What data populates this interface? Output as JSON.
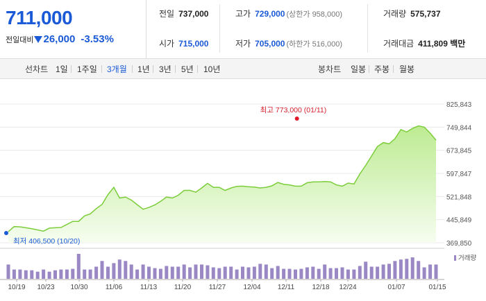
{
  "price": {
    "current": "711,000",
    "change_label": "전일대비",
    "change_amount": "26,000",
    "change_pct": "-3.53%"
  },
  "stats": {
    "prev_label": "전일",
    "prev_value": "737,000",
    "open_label": "시가",
    "open_value": "715,000",
    "high_label": "고가",
    "high_value": "729,000",
    "high_sub": "(상한가 958,000)",
    "low_label": "저가",
    "low_value": "705,000",
    "low_sub": "(하한가 516,000)",
    "volume_label": "거래량",
    "volume_value": "575,737",
    "amount_label": "거래대금",
    "amount_value": "411,809 백만"
  },
  "toolbar": {
    "line_label": "선차트",
    "periods": [
      "1일",
      "1주일",
      "3개월",
      "1년",
      "3년",
      "5년",
      "10년"
    ],
    "selected_period": "3개월",
    "candle_label": "봉차트",
    "candles": [
      "일봉",
      "주봉",
      "월봉"
    ]
  },
  "colors": {
    "accent": "#1b5ad6",
    "line": "#7ccd3a",
    "fill_top": "#c9f1a4",
    "volume": "#9a88c4",
    "high_marker": "#e0192a",
    "low_marker": "#1b5ad6"
  },
  "chart_data": {
    "type": "area",
    "y_ticks": [
      "825,843",
      "749,844",
      "673,845",
      "597,847",
      "521,848",
      "445,849",
      "369,850"
    ],
    "ylim": [
      369850,
      825843
    ],
    "x_tick_labels": [
      "10/19",
      "10/23",
      "10/30",
      "11/06",
      "11/13",
      "11/20",
      "11/27",
      "12/04",
      "12/11",
      "12/18",
      "12/24",
      "01/07",
      "01/15"
    ],
    "high_annotation": "최고 773,000 (01/11)",
    "low_annotation": "최저 406,500 (10/20)",
    "volume_label": "거래량",
    "price_values": [
      406500,
      423000,
      422000,
      419000,
      416000,
      412000,
      408000,
      418000,
      419000,
      420000,
      430000,
      440000,
      440000,
      458000,
      465000,
      482000,
      496000,
      528000,
      552000,
      517000,
      520000,
      510000,
      495000,
      480000,
      486000,
      494000,
      506000,
      520000,
      517000,
      526000,
      542000,
      542000,
      536000,
      550000,
      565000,
      552000,
      552000,
      542000,
      550000,
      555000,
      556000,
      554000,
      553000,
      550000,
      552000,
      557000,
      568000,
      562000,
      560000,
      556000,
      556000,
      567000,
      570000,
      570000,
      571000,
      570000,
      560000,
      556000,
      566000,
      563000,
      596000,
      624000,
      655000,
      686000,
      699000,
      695000,
      712000,
      742000,
      734000,
      746000,
      754000,
      750000,
      730000,
      707000
    ],
    "volume_values": [
      20,
      13,
      13,
      12,
      12,
      10,
      13,
      10,
      12,
      13,
      13,
      14,
      35,
      13,
      13,
      17,
      25,
      17,
      22,
      27,
      25,
      20,
      13,
      20,
      17,
      15,
      14,
      18,
      17,
      17,
      20,
      16,
      20,
      20,
      19,
      16,
      15,
      17,
      17,
      13,
      17,
      16,
      17,
      21,
      20,
      15,
      18,
      14,
      14,
      13,
      14,
      16,
      17,
      14,
      20,
      15,
      15,
      16,
      13,
      13,
      18,
      24,
      17,
      17,
      20,
      21,
      25,
      27,
      28,
      30,
      25,
      16,
      20,
      20
    ]
  }
}
